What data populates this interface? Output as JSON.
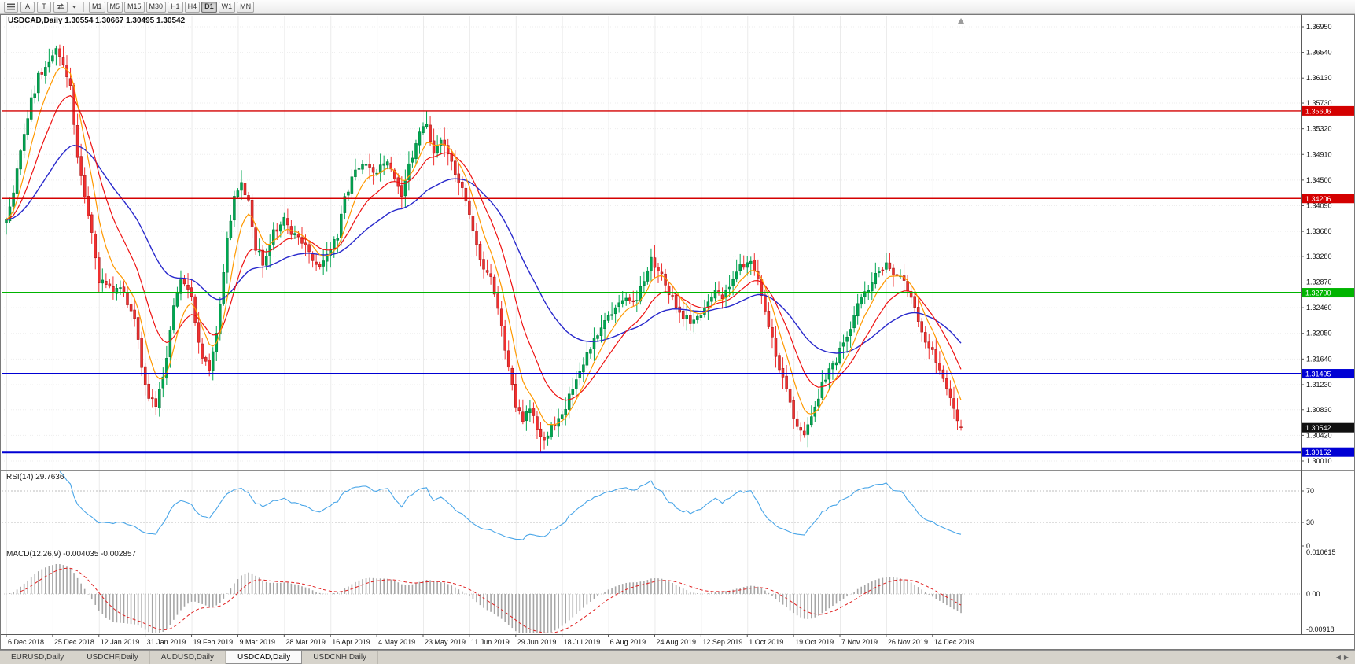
{
  "toolbar": {
    "tool_a": "A",
    "tool_t": "T",
    "timeframes": [
      "M1",
      "M5",
      "M15",
      "M30",
      "H1",
      "H4",
      "D1",
      "W1",
      "MN"
    ],
    "active_timeframe": "D1"
  },
  "chart": {
    "title": "USDCAD,Daily 1.30554 1.30667 1.30495 1.30542",
    "rsi_label": "RSI(14) 29.7636",
    "macd_label": "MACD(12,26,9) -0.004035 -0.002857"
  },
  "tabs": {
    "items": [
      "EURUSD,Daily",
      "USDCHF,Daily",
      "AUDUSD,Daily",
      "USDCAD,Daily",
      "USDCNH,Daily"
    ],
    "active": "USDCAD,Daily",
    "scroll_left": "◀",
    "scroll_right": "▶"
  },
  "colors": {
    "up": "#00a651",
    "up_dark": "#007438",
    "down": "#f03030",
    "down_dark": "#9c1414",
    "ma_fast": "#ff9900",
    "ma_mid": "#ee1111",
    "ma_slow": "#2929cc",
    "rsi": "#4aa6e8",
    "macd_hist": "#a6a6a6",
    "macd_signal": "#e02020"
  },
  "chart_data": {
    "type": "candlestick",
    "symbol": "USDCAD",
    "timeframe": "Daily",
    "days": 269,
    "last_candle": {
      "open": 1.30554,
      "high": 1.30667,
      "low": 1.30495,
      "close": 1.30542
    },
    "price_axis": {
      "labels": [
        "1.36950",
        "1.36540",
        "1.36130",
        "1.35730",
        "1.35320",
        "1.34910",
        "1.34500",
        "1.34090",
        "1.33680",
        "1.33280",
        "1.32870",
        "1.32460",
        "1.32050",
        "1.31640",
        "1.31230",
        "1.30830",
        "1.30420",
        "1.30010"
      ]
    },
    "date_axis": {
      "labels": [
        "6 Dec 2018",
        "25 Dec 2018",
        "12 Jan 2019",
        "31 Jan 2019",
        "19 Feb 2019",
        "9 Mar 2019",
        "28 Mar 2019",
        "16 Apr 2019",
        "4 May 2019",
        "23 May 2019",
        "11 Jun 2019",
        "29 Jun 2019",
        "18 Jul 2019",
        "6 Aug 2019",
        "24 Aug 2019",
        "12 Sep 2019",
        "1 Oct 2019",
        "19 Oct 2019",
        "7 Nov 2019",
        "26 Nov 2019",
        "14 Dec 2019"
      ],
      "days": [
        0,
        13,
        26,
        39,
        52,
        65,
        78,
        91,
        104,
        117,
        130,
        143,
        156,
        169,
        182,
        195,
        208,
        221,
        234,
        247,
        260
      ]
    },
    "hlines": [
      {
        "price": 1.35606,
        "color": "#d40000",
        "width": 1.4
      },
      {
        "price": 1.34206,
        "color": "#d40000",
        "width": 1.4
      },
      {
        "price": 1.327,
        "color": "#00b400",
        "width": 2
      },
      {
        "price": 1.31405,
        "color": "#0000d4",
        "width": 2
      },
      {
        "price": 1.30152,
        "color": "#0000d4",
        "width": 3
      }
    ],
    "badges": [
      {
        "value": "1.35606",
        "color": "#d40000"
      },
      {
        "value": "1.34206",
        "color": "#d40000"
      },
      {
        "value": "1.32700",
        "color": "#00b400"
      },
      {
        "value": "1.31405",
        "color": "#0000d4"
      },
      {
        "value": "1.30542",
        "color": "#101010"
      },
      {
        "value": "1.30152",
        "color": "#0000d4"
      }
    ],
    "ma_periods": {
      "fast": 7,
      "mid": 16,
      "slow": 42
    },
    "rsi": {
      "period": 14,
      "levels": [
        70,
        30,
        0
      ],
      "current": 29.7636
    },
    "macd": {
      "fast": 12,
      "slow": 26,
      "signal": 9,
      "axis": [
        0.010615,
        0,
        -0.00918
      ],
      "axis_labels": [
        "0.010615",
        "0.00",
        "-0.00918"
      ],
      "current_macd": -0.004035,
      "current_signal": -0.002857
    },
    "anchors": [
      [
        0,
        1.339
      ],
      [
        2,
        1.3435
      ],
      [
        4,
        1.349
      ],
      [
        6,
        1.3555
      ],
      [
        9,
        1.3615
      ],
      [
        12,
        1.364
      ],
      [
        14,
        1.3655
      ],
      [
        16,
        1.3635
      ],
      [
        18,
        1.3595
      ],
      [
        20,
        1.348
      ],
      [
        23,
        1.34
      ],
      [
        26,
        1.329
      ],
      [
        29,
        1.3275
      ],
      [
        32,
        1.328
      ],
      [
        34,
        1.3255
      ],
      [
        36,
        1.323
      ],
      [
        38,
        1.315
      ],
      [
        40,
        1.31
      ],
      [
        42,
        1.3095
      ],
      [
        44,
        1.3135
      ],
      [
        47,
        1.3245
      ],
      [
        49,
        1.329
      ],
      [
        52,
        1.326
      ],
      [
        55,
        1.3165
      ],
      [
        57,
        1.3145
      ],
      [
        59,
        1.32
      ],
      [
        62,
        1.335
      ],
      [
        64,
        1.343
      ],
      [
        66,
        1.344
      ],
      [
        68,
        1.3415
      ],
      [
        70,
        1.334
      ],
      [
        72,
        1.332
      ],
      [
        75,
        1.3365
      ],
      [
        78,
        1.3385
      ],
      [
        81,
        1.336
      ],
      [
        84,
        1.334
      ],
      [
        87,
        1.331
      ],
      [
        90,
        1.333
      ],
      [
        93,
        1.336
      ],
      [
        95,
        1.342
      ],
      [
        98,
        1.3465
      ],
      [
        101,
        1.3475
      ],
      [
        104,
        1.346
      ],
      [
        107,
        1.3485
      ],
      [
        109,
        1.3445
      ],
      [
        111,
        1.343
      ],
      [
        113,
        1.3475
      ],
      [
        116,
        1.352
      ],
      [
        118,
        1.3545
      ],
      [
        120,
        1.349
      ],
      [
        122,
        1.3515
      ],
      [
        125,
        1.348
      ],
      [
        128,
        1.3435
      ],
      [
        131,
        1.337
      ],
      [
        134,
        1.331
      ],
      [
        136,
        1.3295
      ],
      [
        138,
        1.324
      ],
      [
        141,
        1.315
      ],
      [
        143,
        1.3085
      ],
      [
        145,
        1.307
      ],
      [
        147,
        1.309
      ],
      [
        150,
        1.3035
      ],
      [
        152,
        1.3045
      ],
      [
        154,
        1.3065
      ],
      [
        156,
        1.3075
      ],
      [
        159,
        1.312
      ],
      [
        162,
        1.3155
      ],
      [
        165,
        1.3195
      ],
      [
        168,
        1.322
      ],
      [
        171,
        1.325
      ],
      [
        174,
        1.3265
      ],
      [
        176,
        1.325
      ],
      [
        179,
        1.329
      ],
      [
        181,
        1.332
      ],
      [
        184,
        1.3295
      ],
      [
        187,
        1.326
      ],
      [
        190,
        1.323
      ],
      [
        193,
        1.3225
      ],
      [
        196,
        1.3245
      ],
      [
        199,
        1.328
      ],
      [
        201,
        1.326
      ],
      [
        204,
        1.3295
      ],
      [
        207,
        1.3315
      ],
      [
        209,
        1.3325
      ],
      [
        211,
        1.3285
      ],
      [
        214,
        1.3215
      ],
      [
        217,
        1.315
      ],
      [
        220,
        1.309
      ],
      [
        222,
        1.306
      ],
      [
        224,
        1.3045
      ],
      [
        226,
        1.307
      ],
      [
        229,
        1.3125
      ],
      [
        232,
        1.3155
      ],
      [
        235,
        1.3185
      ],
      [
        238,
        1.3235
      ],
      [
        241,
        1.327
      ],
      [
        244,
        1.3295
      ],
      [
        247,
        1.3315
      ],
      [
        250,
        1.33
      ],
      [
        253,
        1.3275
      ],
      [
        256,
        1.323
      ],
      [
        259,
        1.318
      ],
      [
        261,
        1.3165
      ],
      [
        263,
        1.313
      ],
      [
        265,
        1.3105
      ],
      [
        266,
        1.3085
      ],
      [
        267,
        1.3068
      ],
      [
        268,
        1.3054
      ]
    ],
    "pins": [
      [
        12,
        "high",
        1.366
      ],
      [
        14,
        "high",
        1.3665
      ],
      [
        118,
        "high",
        1.3561
      ],
      [
        150,
        "low",
        1.30152
      ],
      [
        224,
        "low",
        1.3038
      ]
    ]
  }
}
